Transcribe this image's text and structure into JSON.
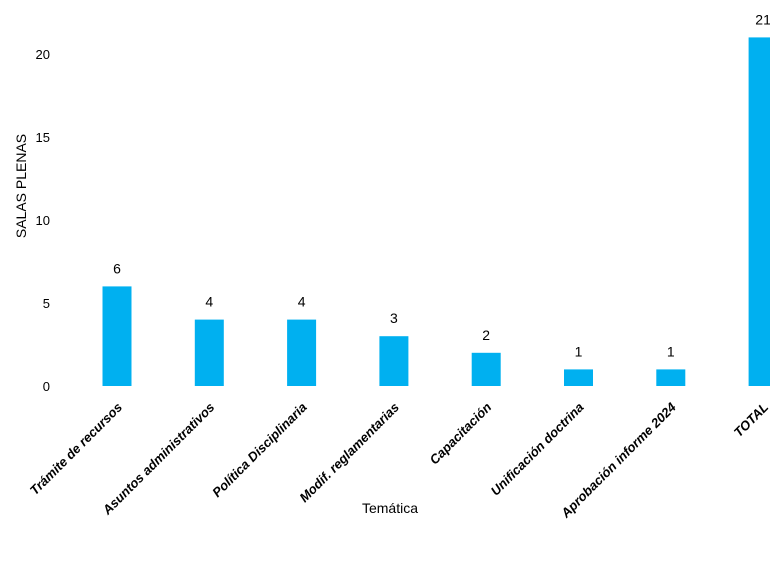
{
  "chart_data": {
    "type": "bar",
    "categories": [
      "Trámite de recursos",
      "Asuntos administrativos",
      "Política Disciplinaria",
      "Modif. reglamentarias",
      "Capacitación",
      "Unificación doctrina",
      "Aprobación informe 2024",
      "TOTAL"
    ],
    "values": [
      6,
      4,
      4,
      3,
      2,
      1,
      1,
      21
    ],
    "title": "",
    "xlabel": "Temática",
    "ylabel": "SALAS PLENAS",
    "ylim": [
      0,
      21
    ],
    "yticks": [
      0,
      5,
      10,
      15,
      20
    ],
    "grid": false,
    "legend": "none",
    "bar_color": "#00b0f0"
  }
}
